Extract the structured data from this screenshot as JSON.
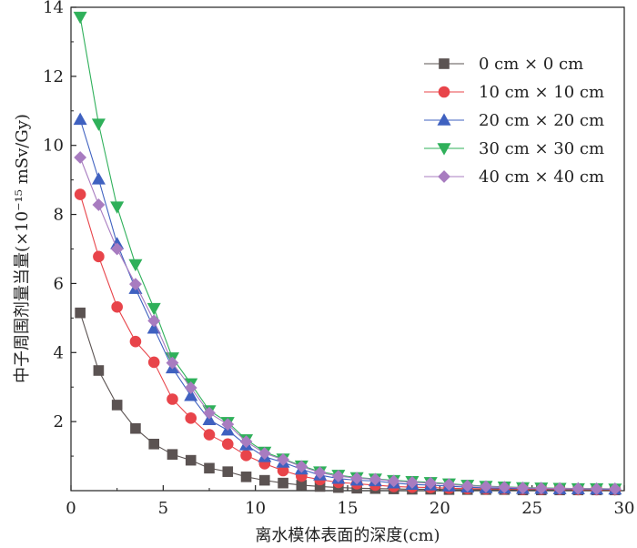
{
  "chart_data": {
    "type": "line",
    "xlabel": "离水模体表面的深度(cm)",
    "ylabel": "中子周围剂量当量(×10⁻¹⁵ mSv/Gy)",
    "xlim": [
      0,
      30
    ],
    "ylim": [
      0,
      14
    ],
    "xticks": [
      0,
      5,
      10,
      15,
      20,
      25,
      30
    ],
    "yticks": [
      2,
      4,
      6,
      8,
      10,
      12,
      14
    ],
    "grid": false,
    "legend_position": "top-right",
    "x": [
      0.5,
      1.5,
      2.5,
      3.5,
      4.5,
      5.5,
      6.5,
      7.5,
      8.5,
      9.5,
      10.5,
      11.5,
      12.5,
      13.5,
      14.5,
      15.5,
      16.5,
      17.5,
      18.5,
      19.5,
      20.5,
      21.5,
      22.5,
      23.5,
      24.5,
      25.5,
      26.5,
      27.5,
      28.5,
      29.5
    ],
    "series": [
      {
        "name": "0 cm × 0 cm",
        "marker": "square",
        "color": "#5b5352",
        "values": [
          5.15,
          3.48,
          2.48,
          1.8,
          1.35,
          1.05,
          0.88,
          0.65,
          0.55,
          0.4,
          0.3,
          0.22,
          0.16,
          0.12,
          0.09,
          0.07,
          0.06,
          0.05,
          0.04,
          0.04,
          0.03,
          0.03,
          0.03,
          0.03,
          0.02,
          0.02,
          0.02,
          0.02,
          0.02,
          0.02
        ]
      },
      {
        "name": "10 cm × 10 cm",
        "marker": "circle",
        "color": "#e8444a",
        "values": [
          8.58,
          6.78,
          5.32,
          4.32,
          3.72,
          2.65,
          2.1,
          1.62,
          1.35,
          1.02,
          0.78,
          0.58,
          0.42,
          0.32,
          0.24,
          0.2,
          0.16,
          0.12,
          0.1,
          0.09,
          0.07,
          0.06,
          0.05,
          0.05,
          0.04,
          0.04,
          0.04,
          0.03,
          0.03,
          0.03
        ]
      },
      {
        "name": "20 cm × 20 cm",
        "marker": "triangle-up",
        "color": "#3f61c0",
        "values": [
          10.75,
          9.02,
          7.15,
          5.85,
          4.7,
          3.55,
          2.75,
          2.05,
          1.75,
          1.32,
          0.98,
          0.82,
          0.62,
          0.45,
          0.35,
          0.3,
          0.28,
          0.22,
          0.18,
          0.16,
          0.13,
          0.1,
          0.08,
          0.07,
          0.06,
          0.06,
          0.05,
          0.05,
          0.04,
          0.04
        ]
      },
      {
        "name": "30 cm × 30 cm",
        "marker": "triangle-down",
        "color": "#2fb05a",
        "values": [
          13.72,
          10.62,
          8.22,
          6.55,
          5.28,
          3.85,
          3.1,
          2.32,
          1.98,
          1.48,
          1.12,
          0.92,
          0.72,
          0.55,
          0.45,
          0.38,
          0.34,
          0.3,
          0.27,
          0.24,
          0.2,
          0.16,
          0.13,
          0.11,
          0.09,
          0.08,
          0.07,
          0.06,
          0.06,
          0.05
        ]
      },
      {
        "name": "40 cm × 40 cm",
        "marker": "diamond",
        "color": "#a87cc0",
        "values": [
          9.65,
          8.28,
          7.0,
          5.98,
          4.92,
          3.7,
          2.98,
          2.25,
          1.92,
          1.42,
          1.08,
          0.9,
          0.7,
          0.52,
          0.42,
          0.36,
          0.33,
          0.28,
          0.24,
          0.22,
          0.18,
          0.14,
          0.12,
          0.1,
          0.08,
          0.07,
          0.06,
          0.06,
          0.05,
          0.05
        ]
      }
    ]
  }
}
